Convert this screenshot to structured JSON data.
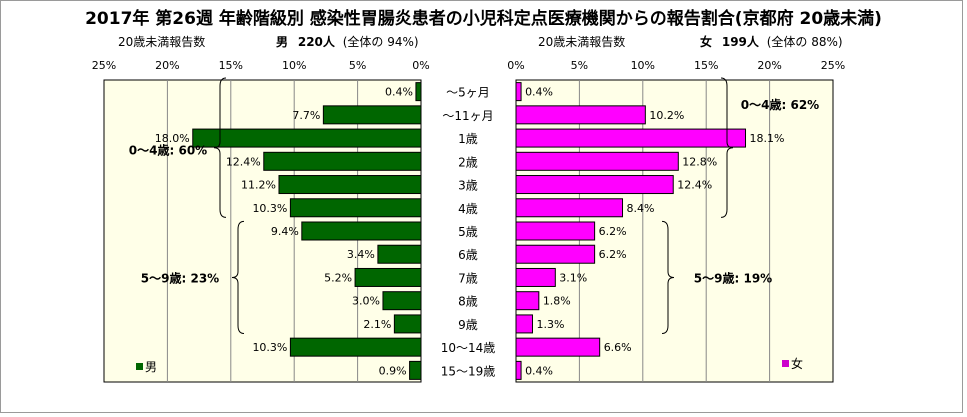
{
  "title": "2017年 第26週 年齢階級別 感染性胃腸炎患者の小児科定点医療機関からの報告割合(京都府 20歳未満)",
  "male_header": {
    "label": "20歳未満報告数",
    "sex": "男",
    "count": "220人",
    "note": "(全体の  94%)"
  },
  "female_header": {
    "label": "20歳未満報告数",
    "sex": "女",
    "count": "199人",
    "note": "(全体の  88%)"
  },
  "colors": {
    "male": "#006600",
    "female": "#ff00ff",
    "panel_bg": "#ffffe8",
    "male_legend": "#006600",
    "female_legend": "#cc00cc"
  },
  "chart_data": [
    {
      "type": "bar",
      "orientation": "horizontal",
      "direction": "right-to-left",
      "series": [
        {
          "name": "男",
          "values": [
            0.4,
            7.7,
            18.0,
            12.4,
            11.2,
            10.3,
            9.4,
            3.4,
            5.2,
            3.0,
            2.1,
            10.3,
            0.9
          ]
        }
      ],
      "categories": [
        "～5ヶ月",
        "～11ヶ月",
        "1歳",
        "2歳",
        "3歳",
        "4歳",
        "5歳",
        "6歳",
        "7歳",
        "8歳",
        "9歳",
        "10～14歳",
        "15～19歳"
      ],
      "data_labels": [
        "0.4%",
        "7.7%",
        "18.0%",
        "12.4%",
        "11.2%",
        "10.3%",
        "9.4%",
        "3.4%",
        "5.2%",
        "3.0%",
        "2.1%",
        "10.3%",
        "0.9%"
      ],
      "xlim": [
        0,
        25
      ],
      "ticks": [
        25,
        20,
        15,
        10,
        5,
        0
      ],
      "tick_labels": [
        "25%",
        "20%",
        "15%",
        "10%",
        "5%",
        "0%"
      ],
      "legend": "男",
      "legend_position": "bottom-left",
      "annotations": [
        {
          "text": "0～4歳: 60%",
          "rows": [
            0,
            5
          ]
        },
        {
          "text": "5～9歳: 23%",
          "rows": [
            6,
            10
          ]
        }
      ],
      "grid": true
    },
    {
      "type": "bar",
      "orientation": "horizontal",
      "direction": "left-to-right",
      "series": [
        {
          "name": "女",
          "values": [
            0.4,
            10.2,
            18.1,
            12.8,
            12.4,
            8.4,
            6.2,
            6.2,
            3.1,
            1.8,
            1.3,
            6.6,
            0.4
          ]
        }
      ],
      "categories": [
        "～5ヶ月",
        "～11ヶ月",
        "1歳",
        "2歳",
        "3歳",
        "4歳",
        "5歳",
        "6歳",
        "7歳",
        "8歳",
        "9歳",
        "10～14歳",
        "15～19歳"
      ],
      "data_labels": [
        "0.4%",
        "10.2%",
        "18.1%",
        "12.8%",
        "12.4%",
        "8.4%",
        "6.2%",
        "6.2%",
        "3.1%",
        "1.8%",
        "1.3%",
        "6.6%",
        "0.4%"
      ],
      "xlim": [
        0,
        25
      ],
      "ticks": [
        0,
        5,
        10,
        15,
        20,
        25
      ],
      "tick_labels": [
        "0%",
        "5%",
        "10%",
        "15%",
        "20%",
        "25%"
      ],
      "legend": "女",
      "legend_position": "bottom-right",
      "annotations": [
        {
          "text": "0～4歳: 62%",
          "rows": [
            0,
            5
          ]
        },
        {
          "text": "5～9歳: 19%",
          "rows": [
            6,
            10
          ]
        }
      ],
      "grid": true
    }
  ]
}
